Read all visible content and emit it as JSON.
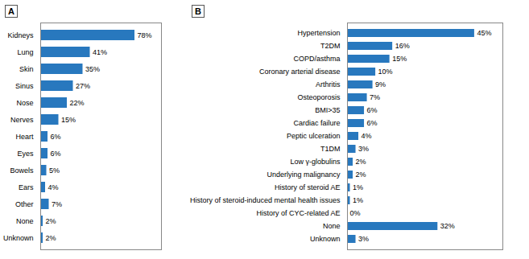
{
  "chart_data": [
    {
      "type": "bar",
      "title": "A",
      "orientation": "horizontal",
      "categories": [
        "Kidneys",
        "Lung",
        "Skin",
        "Sinus",
        "Nose",
        "Nerves",
        "Heart",
        "Eyes",
        "Bowels",
        "Ears",
        "Other",
        "None",
        "Unknown"
      ],
      "values": [
        78,
        41,
        35,
        27,
        22,
        15,
        6,
        6,
        5,
        4,
        7,
        2,
        2
      ],
      "value_labels": [
        "78%",
        "41%",
        "35%",
        "27%",
        "22%",
        "15%",
        "6%",
        "6%",
        "5%",
        "4%",
        "7%",
        "2%",
        "2%"
      ],
      "color": "#2878BE",
      "xlim": [
        0,
        100
      ],
      "data_labels": true,
      "tick_labels": "y",
      "grid": false
    },
    {
      "type": "bar",
      "title": "B",
      "orientation": "horizontal",
      "categories": [
        "Hypertension",
        "T2DM",
        "COPD/asthma",
        "Coronary arterial disease",
        "Arthritis",
        "Osteoporosis",
        "BMI>35",
        "Cardiac failure",
        "Peptic ulceration",
        "T1DM",
        "Low γ-globulins",
        "Underlying malignancy",
        "History of steroid AE",
        "History of steroid-induced mental health issues",
        "History of CYC-related AE",
        "None",
        "Unknown"
      ],
      "values": [
        45,
        16,
        15,
        10,
        9,
        7,
        6,
        6,
        4,
        3,
        2,
        2,
        1,
        1,
        0,
        32,
        3
      ],
      "value_labels": [
        "45%",
        "16%",
        "15%",
        "10%",
        "9%",
        "7%",
        "6%",
        "6%",
        "4%",
        "3%",
        "2%",
        "2%",
        "1%",
        "1%",
        "0%",
        "32%",
        "3%"
      ],
      "color": "#2878BE",
      "xlim": [
        0,
        55
      ],
      "data_labels": true,
      "tick_labels": "y",
      "grid": false
    }
  ]
}
